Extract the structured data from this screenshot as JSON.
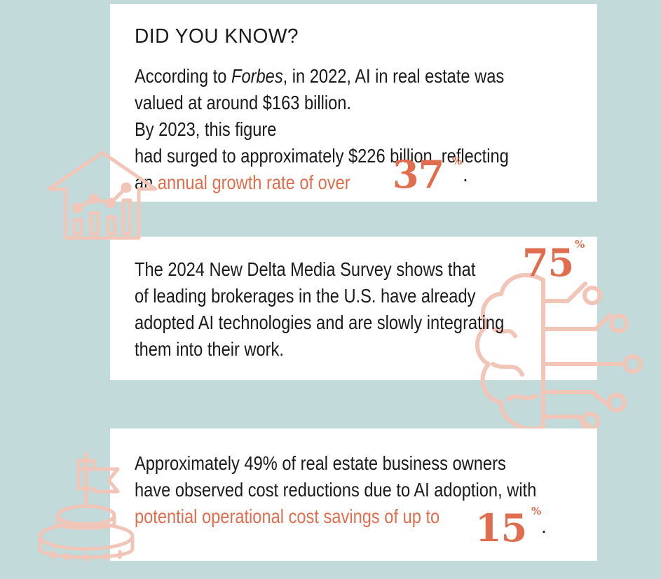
{
  "colors": {
    "background": "#c3dadb",
    "card": "#ffffff",
    "accent": "#e06d4d",
    "icon_stroke": "#f1c5b8",
    "text": "#1a1a1a"
  },
  "heading": "DID YOU KNOW?",
  "facts": [
    {
      "icon": "house-chart-icon",
      "text_before": "According to ",
      "source": "Forbes",
      "text_mid": ", in 2022, AI in real estate was valued at around $163 billion. By 2023, this figure had surged to approximately $226 billion, reflecting an ",
      "highlight": "annual growth rate of over",
      "stat": "37",
      "stat_unit": "%",
      "end": "."
    },
    {
      "icon": "brain-circuit-icon",
      "stat": "75",
      "stat_unit": "%",
      "text": "The 2024 New Delta Media Survey shows that of leading brokerages in the U.S. have already adopted AI technologies and are slowly integrating them into their work."
    },
    {
      "icon": "flag-on-coins-icon",
      "text": "Approximately 49% of real estate business owners have observed cost reductions due to AI adoption, with",
      "highlight": "potential operational cost savings of up to",
      "stat": "15",
      "stat_unit": "%",
      "end": "."
    }
  ]
}
